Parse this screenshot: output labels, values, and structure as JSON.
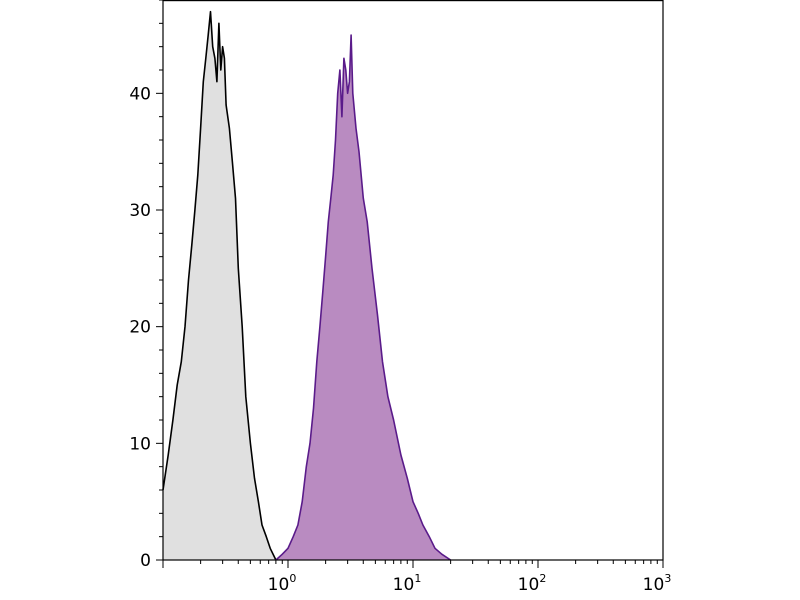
{
  "chart_data": {
    "type": "area",
    "title": "",
    "xlabel": "",
    "ylabel": "",
    "x_scale": "log",
    "xlim": [
      0.1,
      1000
    ],
    "ylim": [
      0,
      48
    ],
    "grid": false,
    "legend": "none",
    "x_ticks": [
      {
        "value": 1,
        "base": "10",
        "exp": "0"
      },
      {
        "value": 10,
        "base": "10",
        "exp": "1"
      },
      {
        "value": 100,
        "base": "10",
        "exp": "2"
      },
      {
        "value": 1000,
        "base": "10",
        "exp": "3"
      }
    ],
    "y_ticks": [
      {
        "value": 0,
        "label": "0"
      },
      {
        "value": 10,
        "label": "10"
      },
      {
        "value": 20,
        "label": "20"
      },
      {
        "value": 30,
        "label": "30"
      },
      {
        "value": 40,
        "label": "40"
      }
    ],
    "series": [
      {
        "fill": "#e0e0e0",
        "stroke": "#000000",
        "x": [
          0.1,
          0.11,
          0.12,
          0.13,
          0.14,
          0.15,
          0.16,
          0.17,
          0.18,
          0.19,
          0.2,
          0.21,
          0.22,
          0.23,
          0.24,
          0.25,
          0.26,
          0.27,
          0.28,
          0.29,
          0.3,
          0.31,
          0.32,
          0.34,
          0.36,
          0.38,
          0.4,
          0.43,
          0.46,
          0.5,
          0.54,
          0.58,
          0.62,
          0.67,
          0.72,
          0.8
        ],
        "y": [
          6,
          9,
          12,
          15,
          17,
          20,
          24,
          27,
          30,
          33,
          37,
          41,
          43,
          45,
          47,
          44,
          43,
          41,
          46,
          42,
          44,
          43,
          39,
          37,
          34,
          31,
          25,
          20,
          14,
          10,
          7,
          5,
          3,
          2,
          1,
          0
        ]
      },
      {
        "fill": "#b98bc1",
        "stroke": "#5a1b8a",
        "x": [
          0.8,
          0.9,
          1.0,
          1.1,
          1.2,
          1.3,
          1.4,
          1.5,
          1.6,
          1.7,
          1.8,
          1.9,
          2.0,
          2.1,
          2.2,
          2.3,
          2.4,
          2.5,
          2.6,
          2.7,
          2.8,
          2.9,
          3.0,
          3.1,
          3.2,
          3.3,
          3.5,
          3.7,
          4.0,
          4.3,
          4.7,
          5.2,
          5.7,
          6.3,
          7.0,
          8.0,
          9.0,
          10.0,
          11.0,
          12.0,
          13.5,
          15.0,
          17.0,
          20.0
        ],
        "y": [
          0,
          0.5,
          1,
          2,
          3,
          5,
          8,
          10,
          13,
          17,
          20,
          23,
          26,
          29,
          31,
          33,
          36,
          40,
          42,
          38,
          43,
          42,
          40,
          41,
          45,
          40,
          37,
          35,
          31,
          29,
          25,
          21,
          17,
          14,
          12,
          9,
          7,
          5,
          4,
          3,
          2,
          1,
          0.5,
          0
        ]
      }
    ]
  }
}
